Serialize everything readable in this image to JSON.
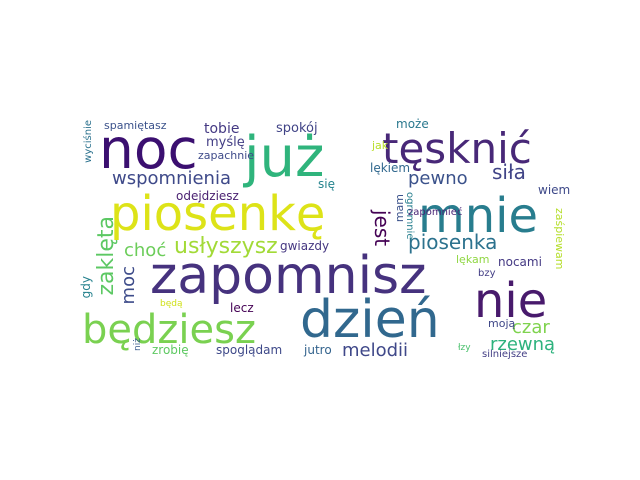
{
  "words": [
    {
      "text": "zapomnisz",
      "color": "#46327e"
    },
    {
      "text": "noc",
      "color": "#3b0f70"
    },
    {
      "text": "już",
      "color": "#2fb47c"
    },
    {
      "text": "tęsknić",
      "color": "#482878"
    },
    {
      "text": "piosenkę",
      "color": "#dde318"
    },
    {
      "text": "mnie",
      "color": "#287d8e"
    },
    {
      "text": "nie",
      "color": "#481a6c"
    },
    {
      "text": "dzień",
      "color": "#31688e"
    },
    {
      "text": "będziesz",
      "color": "#7ad151"
    },
    {
      "text": "wspomnienia",
      "color": "#3e4989"
    },
    {
      "text": "pewno",
      "color": "#3b528b"
    },
    {
      "text": "siła",
      "color": "#414487"
    },
    {
      "text": "piosenka",
      "color": "#2c728e"
    },
    {
      "text": "jest",
      "color": "#440154"
    },
    {
      "text": "usłyszysz",
      "color": "#a2da37"
    },
    {
      "text": "choć",
      "color": "#6ccd5a"
    },
    {
      "text": "zaklęta",
      "color": "#5cc863"
    },
    {
      "text": "moc",
      "color": "#3e4c8a"
    },
    {
      "text": "melodii",
      "color": "#3f4889"
    },
    {
      "text": "czar",
      "color": "#7fd34e"
    },
    {
      "text": "rzewną",
      "color": "#2db27d"
    },
    {
      "text": "spamiętasz",
      "color": "#3b528b"
    },
    {
      "text": "tobie",
      "color": "#443983"
    },
    {
      "text": "spokój",
      "color": "#414487"
    },
    {
      "text": "może",
      "color": "#2a788e"
    },
    {
      "text": "myślę",
      "color": "#433e85"
    },
    {
      "text": "zapachnie",
      "color": "#3e4a89"
    },
    {
      "text": "jak",
      "color": "#b8de29"
    },
    {
      "text": "lękiem",
      "color": "#31688e"
    },
    {
      "text": "odejdziesz",
      "color": "#481f70"
    },
    {
      "text": "się",
      "color": "#25848e"
    },
    {
      "text": "wycisnie",
      "text_override": "wyciśnie",
      "color": "#2c728e"
    },
    {
      "text": "mam",
      "color": "#3b528b"
    },
    {
      "text": "ogromnie",
      "color": "#277f8e"
    },
    {
      "text": "zapomnieć",
      "color": "#482475"
    },
    {
      "text": "wiem",
      "color": "#3e4989"
    },
    {
      "text": "zaśpiewam",
      "color": "#b5de2b"
    },
    {
      "text": "gwiazdy",
      "color": "#453781"
    },
    {
      "text": "lękam",
      "color": "#90d743"
    },
    {
      "text": "nocami",
      "color": "#443983"
    },
    {
      "text": "bzy",
      "color": "#433e85"
    },
    {
      "text": "gdy",
      "color": "#26828e"
    },
    {
      "text": "będą",
      "color": "#d0e11c"
    },
    {
      "text": "lecz",
      "color": "#440154"
    },
    {
      "text": "moją",
      "color": "#3f4788"
    },
    {
      "text": "niż",
      "color": "#38598c"
    },
    {
      "text": "zrobię",
      "color": "#5ec962"
    },
    {
      "text": "spoglądam",
      "color": "#3e4989"
    },
    {
      "text": "jutro",
      "color": "#33638d"
    },
    {
      "text": "łzy",
      "color": "#4ac16d"
    },
    {
      "text": "silniejsze",
      "color": "#433e85"
    }
  ]
}
